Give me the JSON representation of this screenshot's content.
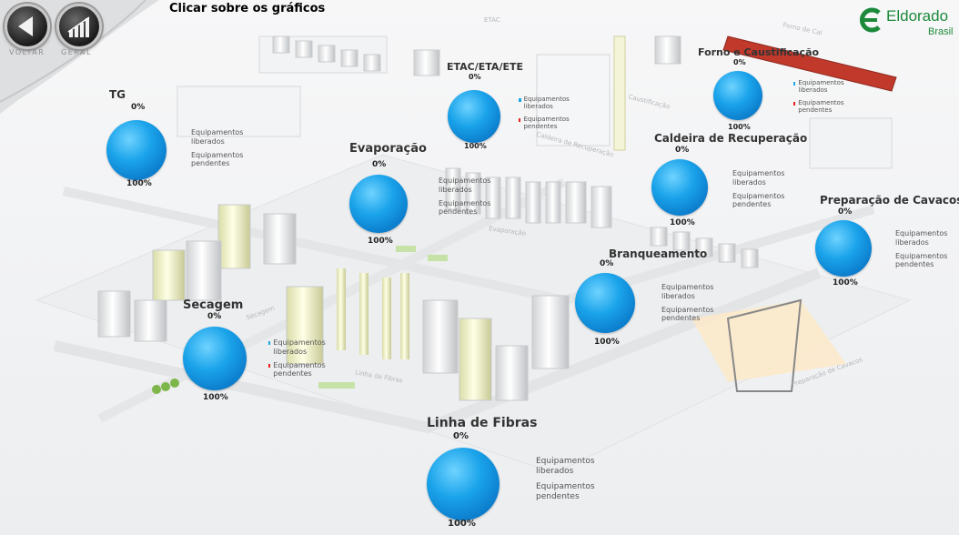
{
  "header": {
    "title": "Clicar sobre os gráficos"
  },
  "nav": {
    "back_label": "VOLTAR",
    "general_label": "GERAL"
  },
  "brand": {
    "name": "Eldorado",
    "country": "Brasil",
    "color": "#1d8a3b"
  },
  "colors": {
    "liberados": "#1ba7e2",
    "pendentes": "#e8221c",
    "pie": "#1aa3ea"
  },
  "legend": {
    "liberados": "Equipamentos liberados",
    "pendentes": "Equipamentos pendentes"
  },
  "scene_labels": {
    "etac": "ETAC",
    "forno": "Forno de Cal",
    "caustificacao": "Caustificação",
    "caldeira": "Caldeira de Recuperação",
    "evaporacao": "Evaporação",
    "linha": "Linha de Fibras",
    "cavacos": "Preparação de Cavacos",
    "secagem": "Secagem"
  },
  "areas": [
    {
      "id": "tg",
      "title": "TG",
      "pct_top": "0%",
      "pct_bottom": "100%"
    },
    {
      "id": "etac-eta-ete",
      "title": "ETAC/ETA/ETE",
      "pct_top": "0%",
      "pct_bottom": "100%"
    },
    {
      "id": "forno-caustificacao",
      "title": "Forno e Caustificação",
      "pct_top": "0%",
      "pct_bottom": "100%"
    },
    {
      "id": "evaporacao",
      "title": "Evaporação",
      "pct_top": "0%",
      "pct_bottom": "100%"
    },
    {
      "id": "caldeira-recuperacao",
      "title": "Caldeira de Recuperação",
      "pct_top": "0%",
      "pct_bottom": "100%"
    },
    {
      "id": "preparacao-cavacos",
      "title": "Preparação de Cavacos",
      "pct_top": "0%",
      "pct_bottom": "100%"
    },
    {
      "id": "branqueamento",
      "title": "Branqueamento",
      "pct_top": "0%",
      "pct_bottom": "100%"
    },
    {
      "id": "secagem",
      "title": "Secagem",
      "pct_top": "0%",
      "pct_bottom": "100%"
    },
    {
      "id": "linha-fibras",
      "title": "Linha de Fibras",
      "pct_top": "0%",
      "pct_bottom": "100%"
    }
  ],
  "chart_data": [
    {
      "type": "pie",
      "title": "TG",
      "categories": [
        "Equipamentos liberados",
        "Equipamentos pendentes"
      ],
      "values": [
        100,
        0
      ],
      "colors": [
        "#1ba7e2",
        "#e8221c"
      ]
    },
    {
      "type": "pie",
      "title": "ETAC/ETA/ETE",
      "categories": [
        "Equipamentos liberados",
        "Equipamentos pendentes"
      ],
      "values": [
        100,
        0
      ],
      "colors": [
        "#1ba7e2",
        "#e8221c"
      ]
    },
    {
      "type": "pie",
      "title": "Forno e Caustificação",
      "categories": [
        "Equipamentos liberados",
        "Equipamentos pendentes"
      ],
      "values": [
        100,
        0
      ],
      "colors": [
        "#1ba7e2",
        "#e8221c"
      ]
    },
    {
      "type": "pie",
      "title": "Evaporação",
      "categories": [
        "Equipamentos liberados",
        "Equipamentos pendentes"
      ],
      "values": [
        100,
        0
      ],
      "colors": [
        "#1ba7e2",
        "#e8221c"
      ]
    },
    {
      "type": "pie",
      "title": "Caldeira de Recuperação",
      "categories": [
        "Equipamentos liberados",
        "Equipamentos pendentes"
      ],
      "values": [
        100,
        0
      ],
      "colors": [
        "#1ba7e2",
        "#e8221c"
      ]
    },
    {
      "type": "pie",
      "title": "Preparação de Cavacos",
      "categories": [
        "Equipamentos liberados",
        "Equipamentos pendentes"
      ],
      "values": [
        100,
        0
      ],
      "colors": [
        "#1ba7e2",
        "#e8221c"
      ]
    },
    {
      "type": "pie",
      "title": "Branqueamento",
      "categories": [
        "Equipamentos liberados",
        "Equipamentos pendentes"
      ],
      "values": [
        100,
        0
      ],
      "colors": [
        "#1ba7e2",
        "#e8221c"
      ]
    },
    {
      "type": "pie",
      "title": "Secagem",
      "categories": [
        "Equipamentos liberados",
        "Equipamentos pendentes"
      ],
      "values": [
        100,
        0
      ],
      "colors": [
        "#1ba7e2",
        "#e8221c"
      ]
    },
    {
      "type": "pie",
      "title": "Linha de Fibras",
      "categories": [
        "Equipamentos liberados",
        "Equipamentos pendentes"
      ],
      "values": [
        100,
        0
      ],
      "colors": [
        "#1ba7e2",
        "#e8221c"
      ]
    }
  ]
}
